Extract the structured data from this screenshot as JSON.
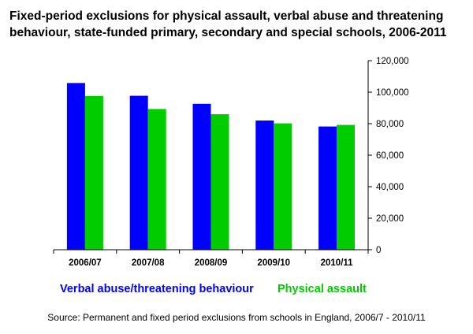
{
  "chart_data": {
    "type": "bar",
    "title_lines": [
      "Fixed-period exclusions for physical assault, verbal abuse and threatening",
      "behaviour, state-funded primary, secondary and special schools, 2006-2011"
    ],
    "categories": [
      "2006/07",
      "2007/08",
      "2008/09",
      "2009/10",
      "2010/11"
    ],
    "series": [
      {
        "name": "Verbal abuse/threatening behaviour",
        "color": "#0000ff",
        "values": [
          105800,
          97700,
          92600,
          82000,
          78200
        ]
      },
      {
        "name": "Physical assault",
        "color": "#00cc00",
        "values": [
          97600,
          89300,
          86000,
          80200,
          79200
        ]
      }
    ],
    "ylim": [
      0,
      120000
    ],
    "yticks": [
      "0",
      "20,000",
      "40,000",
      "60,000",
      "80,000",
      "100,000",
      "120,000"
    ],
    "y_axis_side": "right",
    "grid": false,
    "legend_position": "bottom",
    "source": "Source: Permanent and fixed period exclusions from schools in England, 2006/7 - 2010/11"
  }
}
